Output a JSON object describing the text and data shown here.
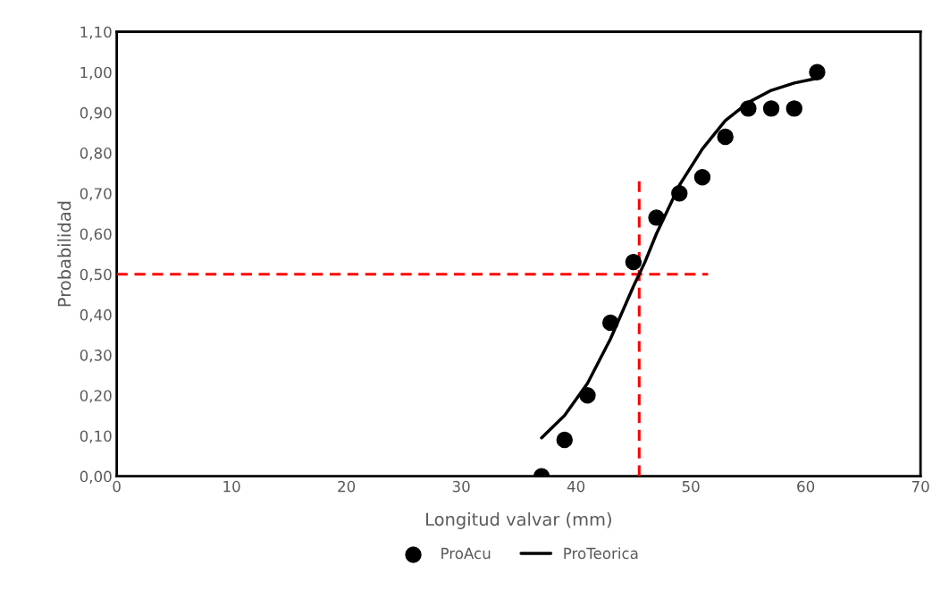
{
  "chart_data": {
    "type": "scatter",
    "xlabel": "Longitud valvar (mm)",
    "ylabel": "Probabilidad",
    "xlim": [
      0,
      70
    ],
    "xticks": [
      0,
      10,
      20,
      30,
      40,
      50,
      60,
      70
    ],
    "ylim": [
      0,
      1.1
    ],
    "yticks": [
      {
        "value": 0,
        "label": "0,00"
      },
      {
        "value": 0.1,
        "label": "0,10"
      },
      {
        "value": 0.2,
        "label": "0,20"
      },
      {
        "value": 0.3,
        "label": "0,30"
      },
      {
        "value": 0.4,
        "label": "0,40"
      },
      {
        "value": 0.5,
        "label": "0,50"
      },
      {
        "value": 0.6,
        "label": "0,60"
      },
      {
        "value": 0.7,
        "label": "0,70"
      },
      {
        "value": 0.8,
        "label": "0,80"
      },
      {
        "value": 0.9,
        "label": "0,90"
      },
      {
        "value": 1.0,
        "label": "1,00"
      },
      {
        "value": 1.1,
        "label": "1,10"
      }
    ],
    "grid": false,
    "legend": "bottom",
    "series": [
      {
        "type": "line",
        "color": "#ff0000",
        "line_style": "dashed",
        "marker": "none",
        "x": [
          0,
          51.5
        ],
        "values": [
          0.5,
          0.5
        ]
      },
      {
        "type": "line",
        "color": "#ff0000",
        "line_style": "dashed",
        "marker": "none",
        "x": [
          45.5,
          45.5
        ],
        "values": [
          0,
          0.73
        ]
      },
      {
        "name": "ProAcu",
        "color": "#000000",
        "marker": "circle",
        "x": [
          37,
          39,
          41,
          43,
          45,
          47,
          49,
          51,
          53,
          55,
          57,
          59,
          61
        ],
        "values": [
          0,
          0.09,
          0.2,
          0.38,
          0.53,
          0.64,
          0.7,
          0.74,
          0.84,
          0.91,
          0.91,
          0.91,
          1.0
        ]
      },
      {
        "name": "ProTeorica",
        "type": "line",
        "color": "#000000",
        "line_style": "solid",
        "marker": "none",
        "x": [
          37,
          39,
          41,
          43,
          45,
          46,
          47,
          49,
          51,
          53,
          55,
          57,
          59,
          61
        ],
        "values": [
          0.095,
          0.15,
          0.23,
          0.34,
          0.47,
          0.53,
          0.6,
          0.72,
          0.81,
          0.88,
          0.925,
          0.955,
          0.973,
          0.985
        ]
      }
    ]
  }
}
